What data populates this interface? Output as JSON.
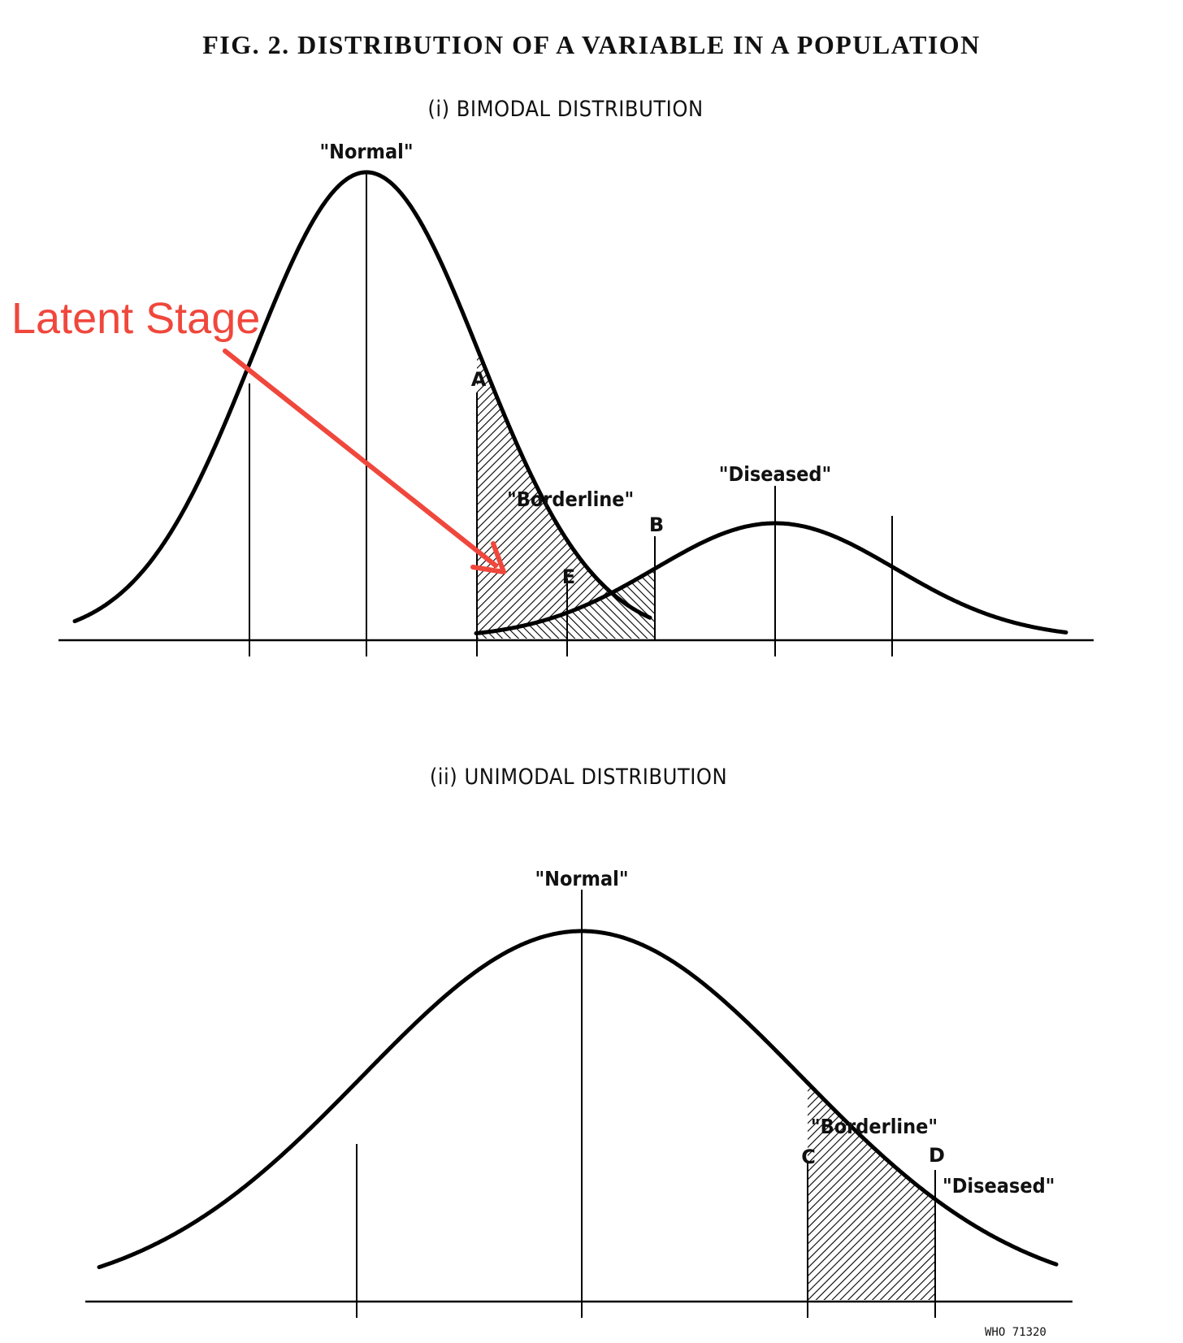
{
  "figure": {
    "title": "FIG. 2.  DISTRIBUTION OF A VARIABLE IN A POPULATION",
    "reference": "WHO 71320"
  },
  "panels": {
    "bimodal": {
      "title": "(i) BIMODAL DISTRIBUTION",
      "labels": {
        "normal": "\"Normal\"",
        "borderline": "\"Borderline\"",
        "diseased": "\"Diseased\"",
        "a": "A",
        "b": "B",
        "e": "E"
      }
    },
    "unimodal": {
      "title": "(ii) UNIMODAL DISTRIBUTION",
      "labels": {
        "normal": "\"Normal\"",
        "borderline": "\"Borderline\"",
        "diseased": "\"Diseased\"",
        "c": "C",
        "d": "D"
      }
    }
  },
  "annotation": {
    "text": "Latent Stage",
    "color": "#f0473c"
  }
}
